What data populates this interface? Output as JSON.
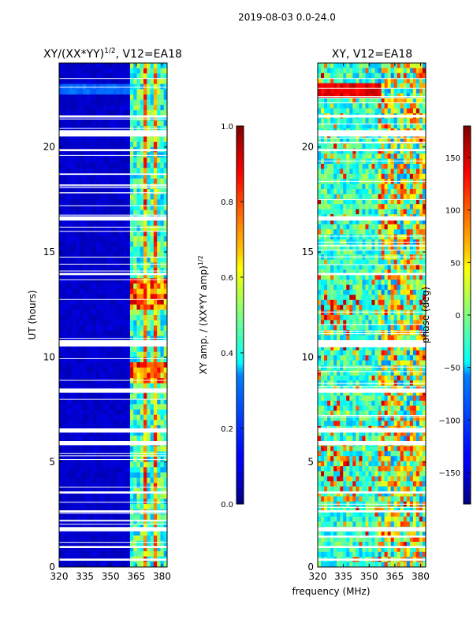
{
  "figure": {
    "suptitle": "2019-08-03 0.0-24.0",
    "shared_xlabel": "frequency (MHz)"
  },
  "chart_data": [
    {
      "type": "heatmap",
      "id": "amp",
      "title": "XY/(XX*YY)¹ᐟ², V12=EA18",
      "title_display": "XY/(XX*YY)1/2, V12=EA18",
      "xlabel": "",
      "ylabel": "UT (hours)",
      "xlim": [
        320,
        383
      ],
      "ylim": [
        0,
        24
      ],
      "xticks": [
        320,
        335,
        350,
        365,
        380
      ],
      "yticks": [
        0,
        5,
        10,
        15,
        20
      ],
      "colormap": "jet",
      "colorbar": {
        "label": "XY amp. / (XX*YY amp)1/2",
        "range": [
          0.0,
          1.0
        ],
        "ticks": [
          "0.0",
          "0.2",
          "0.4",
          "0.6",
          "0.8",
          "1.0"
        ]
      }
    },
    {
      "type": "heatmap",
      "id": "phase",
      "title": "XY, V12=EA18",
      "xlabel": "frequency (MHz)",
      "ylabel": "",
      "xlim": [
        320,
        383
      ],
      "ylim": [
        0,
        24
      ],
      "xticks": [
        320,
        335,
        350,
        365,
        380
      ],
      "yticks": [
        0,
        5,
        10,
        15,
        20
      ],
      "colormap": "jet",
      "colorbar": {
        "label": "phase (deg)",
        "range": [
          -180,
          180
        ],
        "ticks": [
          "−150",
          "−100",
          "−50",
          "0",
          "50",
          "100",
          "150"
        ]
      }
    }
  ],
  "colors": {
    "jet_low": "#00007f",
    "jet_high": "#7f0000",
    "flag": "#ffffff"
  }
}
